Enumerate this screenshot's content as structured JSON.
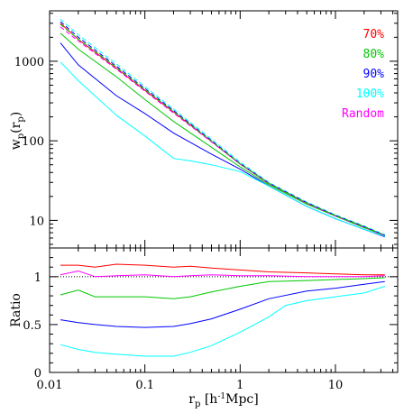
{
  "chart_data": [
    {
      "type": "line",
      "panel": "top",
      "ylabel": "w_p(r_p)",
      "xscale": "log",
      "yscale": "log",
      "xlim": [
        0.01,
        45
      ],
      "ylim": [
        4.5,
        4300
      ],
      "yticks": [
        10,
        100,
        1000
      ],
      "ytick_labels": [
        "10",
        "100",
        "1000"
      ],
      "legend_placement": "top-right",
      "series": [
        {
          "name": "70%",
          "color": "#ff0000",
          "style": "solid",
          "x": [
            0.013,
            0.02,
            0.05,
            0.1,
            0.2,
            0.5,
            1,
            2,
            5,
            10,
            20,
            33
          ],
          "y": [
            3000,
            1880,
            820,
            430,
            230,
            98,
            51,
            29,
            16.5,
            11.5,
            8.3,
            6.5
          ]
        },
        {
          "name": "80%",
          "color": "#00c800",
          "style": "solid",
          "x": [
            0.013,
            0.02,
            0.05,
            0.1,
            0.2,
            0.5,
            1,
            2,
            5,
            10,
            20,
            33
          ],
          "y": [
            2250,
            1420,
            640,
            330,
            175,
            83,
            47,
            28,
            16,
            11.3,
            8.1,
            6.4
          ]
        },
        {
          "name": "90%",
          "color": "#0000ff",
          "style": "solid",
          "x": [
            0.013,
            0.02,
            0.05,
            0.1,
            0.2,
            0.5,
            1,
            2,
            5,
            10,
            20,
            33
          ],
          "y": [
            1700,
            900,
            370,
            220,
            125,
            68,
            44,
            27,
            15,
            10.5,
            7.7,
            6.2
          ]
        },
        {
          "name": "100%",
          "color": "#00ffff",
          "style": "solid",
          "x": [
            0.013,
            0.02,
            0.05,
            0.1,
            0.2,
            0.3,
            0.5,
            1,
            2,
            5,
            10,
            20,
            33
          ],
          "y": [
            980,
            570,
            210,
            115,
            60,
            56,
            50,
            41,
            27,
            15,
            10.5,
            7.7,
            6.3
          ]
        },
        {
          "name": "Random",
          "color": "#ff00ff",
          "style": "dashed",
          "x": [
            0.013,
            0.02,
            0.05,
            0.1,
            0.2,
            0.5,
            1,
            2,
            5,
            10,
            20,
            33
          ],
          "y": [
            2700,
            1800,
            800,
            420,
            223,
            97,
            51,
            29,
            16.3,
            11.3,
            8.2,
            6.4
          ]
        },
        {
          "name": "",
          "color": "#00ffff",
          "style": "dashed",
          "x": [
            0.013,
            0.02,
            0.05,
            0.1,
            0.2,
            0.5,
            1,
            2,
            5,
            10,
            20,
            33
          ],
          "y": [
            3400,
            2150,
            930,
            480,
            250,
            105,
            54,
            30,
            17,
            11.7,
            8.5,
            6.6
          ]
        },
        {
          "name": "",
          "color": "#0000ff",
          "style": "dashed",
          "x": [
            0.013,
            0.02,
            0.05,
            0.1,
            0.2,
            0.5,
            1,
            2,
            5,
            10,
            20,
            33
          ],
          "y": [
            3150,
            2000,
            870,
            455,
            240,
            101,
            52,
            29.5,
            16.7,
            11.6,
            8.4,
            6.5
          ]
        },
        {
          "name": "",
          "color": "#00c800",
          "style": "dashed",
          "x": [
            0.013,
            0.02,
            0.05,
            0.1,
            0.2,
            0.5,
            1,
            2,
            5,
            10,
            20,
            33
          ],
          "y": [
            2900,
            1900,
            840,
            440,
            233,
            99,
            51.5,
            29.2,
            16.5,
            11.5,
            8.3,
            6.5
          ]
        }
      ]
    },
    {
      "type": "line",
      "panel": "bottom",
      "xlabel": "r_p [h^-1 Mpc]",
      "ylabel": "Ratio",
      "xscale": "log",
      "xlim": [
        0.01,
        45
      ],
      "ylim": [
        0,
        1.3
      ],
      "xticks": [
        0.01,
        0.1,
        1,
        10
      ],
      "xtick_labels": [
        "0.01",
        "0.1",
        "1",
        "10"
      ],
      "yticks": [
        0,
        0.5,
        1
      ],
      "ytick_labels": [
        "0",
        "0.5",
        "1"
      ],
      "reference_line": {
        "y": 1,
        "style": "dotted",
        "color": "#000000"
      },
      "series": [
        {
          "name": "70%",
          "color": "#ff0000",
          "style": "solid",
          "x": [
            0.013,
            0.02,
            0.03,
            0.05,
            0.1,
            0.2,
            0.3,
            0.5,
            1,
            2,
            5,
            10,
            20,
            33
          ],
          "y": [
            1.12,
            1.12,
            1.1,
            1.13,
            1.12,
            1.1,
            1.11,
            1.09,
            1.07,
            1.05,
            1.04,
            1.03,
            1.02,
            1.02
          ]
        },
        {
          "name": "80%",
          "color": "#00c800",
          "style": "solid",
          "x": [
            0.013,
            0.02,
            0.03,
            0.05,
            0.1,
            0.2,
            0.3,
            0.5,
            1,
            2,
            5,
            10,
            20,
            33
          ],
          "y": [
            0.81,
            0.86,
            0.79,
            0.79,
            0.79,
            0.77,
            0.79,
            0.84,
            0.9,
            0.95,
            0.96,
            0.97,
            0.98,
            0.99
          ]
        },
        {
          "name": "90%",
          "color": "#0000ff",
          "style": "solid",
          "x": [
            0.013,
            0.02,
            0.03,
            0.05,
            0.1,
            0.2,
            0.3,
            0.5,
            1,
            2,
            5,
            10,
            20,
            33
          ],
          "y": [
            0.55,
            0.52,
            0.5,
            0.48,
            0.47,
            0.48,
            0.51,
            0.56,
            0.66,
            0.77,
            0.85,
            0.88,
            0.92,
            0.95
          ]
        },
        {
          "name": "100%",
          "color": "#00ffff",
          "style": "solid",
          "x": [
            0.013,
            0.02,
            0.03,
            0.05,
            0.1,
            0.2,
            0.3,
            0.5,
            1,
            2,
            3,
            5,
            10,
            20,
            33
          ],
          "y": [
            0.29,
            0.24,
            0.21,
            0.19,
            0.17,
            0.17,
            0.21,
            0.28,
            0.42,
            0.58,
            0.7,
            0.75,
            0.79,
            0.83,
            0.9
          ]
        },
        {
          "name": "Random",
          "color": "#ff00ff",
          "style": "solid",
          "x": [
            0.013,
            0.02,
            0.03,
            0.05,
            0.1,
            0.2,
            0.3,
            0.5,
            1,
            2,
            5,
            10,
            20,
            33
          ],
          "y": [
            1.02,
            1.06,
            1.0,
            1.01,
            1.02,
            1.0,
            1.01,
            1.02,
            1.01,
            1.01,
            1.0,
            1.0,
            1.0,
            1.01
          ]
        }
      ]
    }
  ]
}
